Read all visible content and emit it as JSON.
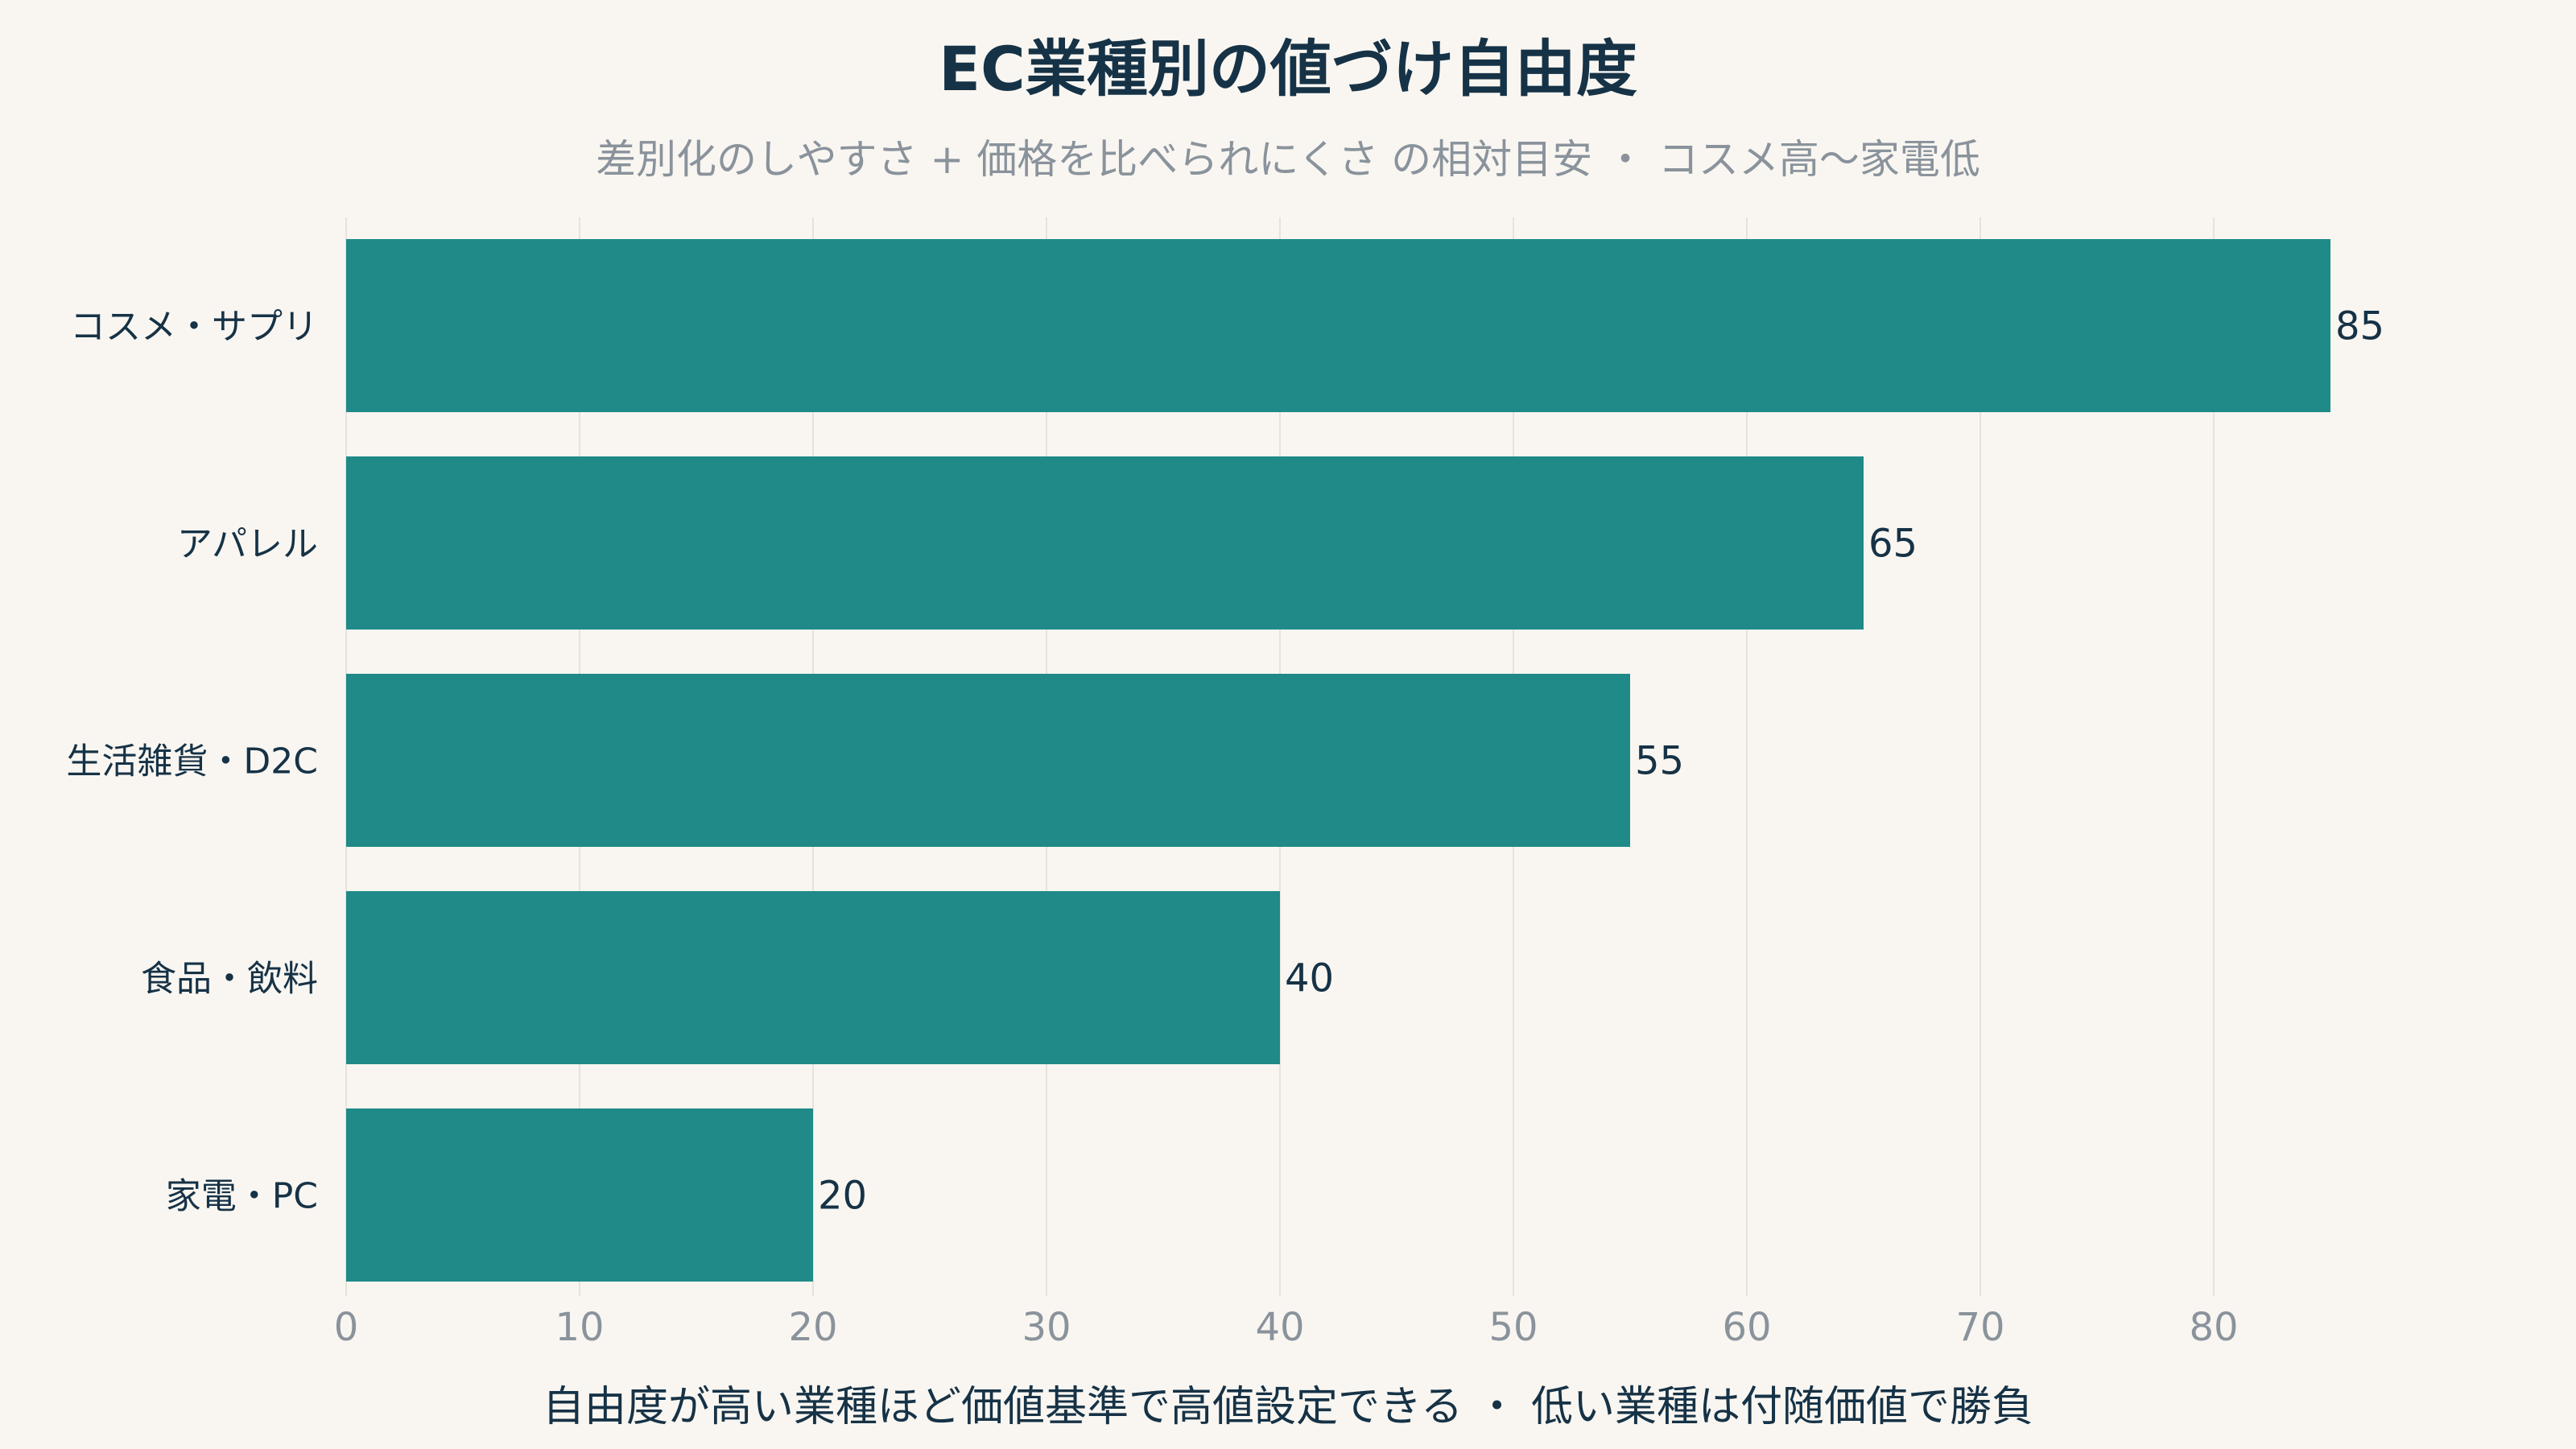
{
  "chart_data": {
    "type": "bar",
    "orientation": "horizontal",
    "title": "EC業種別の値づけ自由度",
    "subtitle": "差別化のしやすさ + 価格を比べられにくさ の相対目安 ・ コスメ高〜家電低",
    "xlabel": "自由度が高い業種ほど価値基準で高値設定できる ・ 低い業種は付随価値で勝負",
    "ylabel": "",
    "categories": [
      "コスメ・サプリ",
      "アパレル",
      "生活雑貨・D2C",
      "食品・飲料",
      "家電・PC"
    ],
    "values": [
      85,
      65,
      55,
      40,
      20
    ],
    "value_labels": [
      "85",
      "65",
      "55",
      "40",
      "20"
    ],
    "xlim": [
      0,
      92
    ],
    "xticks": [
      0,
      10,
      20,
      30,
      40,
      50,
      60,
      70,
      80
    ],
    "xtick_labels": [
      "0",
      "10",
      "20",
      "30",
      "40",
      "50",
      "60",
      "70",
      "80"
    ],
    "grid": "vertical",
    "legend": "none",
    "bar_color": "#1f8a87"
  }
}
